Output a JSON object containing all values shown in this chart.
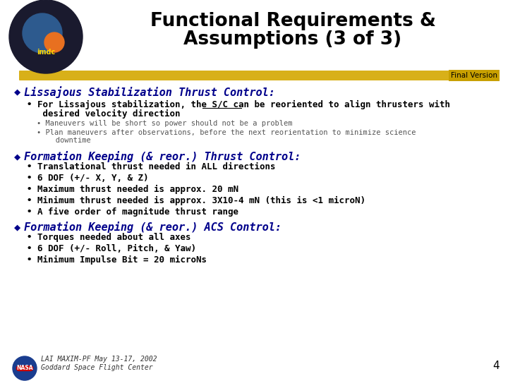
{
  "title_line1": "Functional Requirements &",
  "title_line2": "Assumptions (3 of 3)",
  "title_fontsize": 20,
  "title_color": "#000000",
  "bg_color": "#ffffff",
  "final_version_text": "Final Version",
  "final_version_color": "#000000",
  "banner_color_left": "#C8A800",
  "banner_color_right": "#C8A800",
  "header_color": "#00008B",
  "body_color": "#000000",
  "sub_color": "#555555",
  "section1_header": "Lissajous Stabilization Thrust Control:",
  "section2_header": "Formation Keeping (& reor.) Thrust Control:",
  "section3_header": "Formation Keeping (& reor.) ACS Control:",
  "s1_bullet_pre": "• For Lissajous stabilization, the S/C can be ",
  "s1_bullet_underline": "reoriented",
  "s1_bullet_post": " to align thrusters with",
  "s1_bullet_line2": "   desired velocity direction",
  "s1_sub1": "• Maneuvers will be short so power should not be a problem",
  "s1_sub2": "• Plan maneuvers after observations, before the next reorientation to minimize science",
  "s1_sub2b": "   downtime",
  "s2_bullets": [
    "• Translational thrust needed in ALL directions",
    "• 6 DOF (+/- X, Y, & Z)",
    "• Maximum thrust needed is approx. 20 mN",
    "• Minimum thrust needed is approx. 3X10-4 mN (this is <1 microN)",
    "• A five order of magnitude thrust range"
  ],
  "s3_bullets": [
    "• Torques needed about all axes",
    "• 6 DOF (+/- Roll, Pitch, & Yaw)",
    "• Minimum Impulse Bit = 20 microNs"
  ],
  "footer_line1": "LAI MAXIM-PF May 13-17, 2002",
  "footer_line2": "Goddard Space Flight Center",
  "page_number": "4"
}
